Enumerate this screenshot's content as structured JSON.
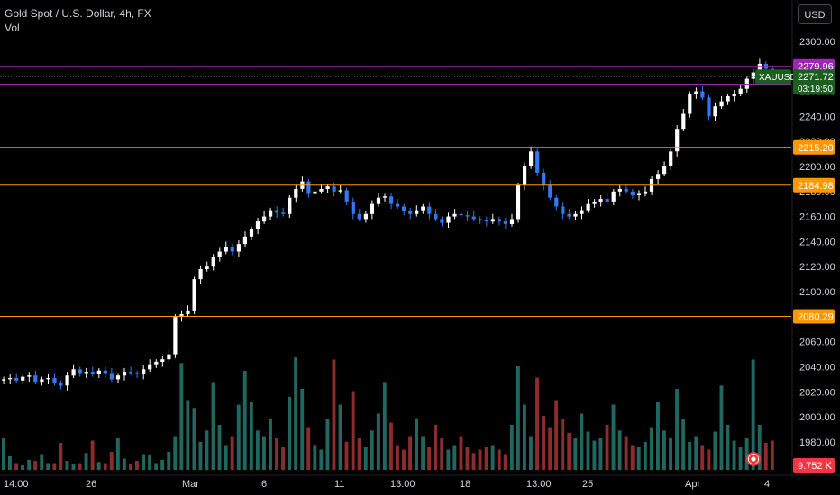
{
  "header": {
    "symbol_title": "Gold Spot / U.S. Dollar, 4h, FX",
    "indicator_label": "Vol",
    "currency_button": "USD"
  },
  "price_axis_labels": [
    "2300.00",
    "2260.00",
    "2240.00",
    "2220.00",
    "2200.00",
    "2180.00",
    "2160.00",
    "2140.00",
    "2120.00",
    "2100.00",
    "2080.00",
    "2060.00",
    "2040.00",
    "2020.00",
    "2000.00",
    "1980.00"
  ],
  "time_axis_labels": [
    "14:00",
    "26",
    "Mar",
    "6",
    "11",
    "13:00",
    "18",
    "13:00",
    "25",
    "Apr",
    "4"
  ],
  "colors": {
    "up": "#ffffff",
    "down": "#3179f5",
    "vol_up": "#22675f",
    "vol_down": "#8c2d2d",
    "orange": "#ff9800",
    "purple": "#9c27b0",
    "green_badge": "#1b5e20",
    "red_badge": "#f23645"
  },
  "chart_data": {
    "type": "candlestick",
    "title": "Gold Spot / U.S. Dollar, 4h, FX",
    "symbol": "XAUUSD",
    "interval": "4h",
    "ylim": [
      1962,
      2306
    ],
    "grid": false,
    "current_price": 2271.72,
    "countdown": "03:19:50",
    "volume_readout": "9.752 K",
    "horizontal_lines": [
      {
        "price": 2279.96,
        "color": "#9c27b0",
        "label": "2279.96"
      },
      {
        "price": 2265.76,
        "color": "#9c27b0",
        "label": "2265.76"
      },
      {
        "price": 2215.2,
        "color": "#ff9800",
        "label": "2215.20"
      },
      {
        "price": 2184.98,
        "color": "#ff9800",
        "label": "2184.98"
      },
      {
        "price": 2080.29,
        "color": "#ff9800",
        "label": "2080.29"
      }
    ],
    "price_path": [
      2030,
      2031,
      2029,
      2032,
      2033,
      2028,
      2030,
      2031,
      2027,
      2025,
      2033,
      2038,
      2035,
      2036,
      2034,
      2037,
      2035,
      2030,
      2033,
      2036,
      2035,
      2034,
      2038,
      2042,
      2044,
      2046,
      2050,
      2080,
      2082,
      2085,
      2110,
      2118,
      2120,
      2128,
      2132,
      2136,
      2132,
      2138,
      2144,
      2150,
      2156,
      2160,
      2165,
      2163,
      2162,
      2175,
      2182,
      2188,
      2178,
      2180,
      2182,
      2184,
      2180,
      2181,
      2172,
      2162,
      2158,
      2162,
      2170,
      2175,
      2176,
      2170,
      2168,
      2164,
      2162,
      2165,
      2168,
      2162,
      2158,
      2155,
      2160,
      2162,
      2161,
      2160,
      2158,
      2157,
      2156,
      2158,
      2156,
      2154,
      2158,
      2185,
      2200,
      2212,
      2195,
      2185,
      2175,
      2168,
      2162,
      2160,
      2162,
      2165,
      2170,
      2172,
      2174,
      2172,
      2180,
      2182,
      2180,
      2177,
      2178,
      2180,
      2190,
      2194,
      2200,
      2212,
      2230,
      2242,
      2258,
      2260,
      2255,
      2240,
      2248,
      2252,
      2256,
      2258,
      2262,
      2270,
      2275,
      2282,
      2278,
      2272,
      2268,
      2270
    ],
    "volume_path": [
      0.28,
      0.12,
      0.06,
      0.04,
      0.09,
      0.08,
      0.14,
      0.06,
      0.06,
      0.24,
      0.08,
      0.05,
      0.06,
      0.15,
      0.26,
      0.07,
      0.06,
      0.16,
      0.28,
      0.1,
      0.05,
      0.08,
      0.14,
      0.13,
      0.06,
      0.09,
      0.16,
      0.3,
      0.95,
      0.62,
      0.55,
      0.25,
      0.35,
      0.78,
      0.4,
      0.22,
      0.3,
      0.58,
      0.88,
      0.6,
      0.35,
      0.3,
      0.45,
      0.28,
      0.2,
      0.65,
      1.0,
      0.72,
      0.38,
      0.22,
      0.18,
      0.45,
      0.98,
      0.58,
      0.25,
      0.7,
      0.28,
      0.2,
      0.35,
      0.5,
      0.78,
      0.42,
      0.22,
      0.18,
      0.3,
      0.46,
      0.3,
      0.2,
      0.4,
      0.28,
      0.18,
      0.22,
      0.3,
      0.2,
      0.15,
      0.18,
      0.2,
      0.22,
      0.18,
      0.14,
      0.4,
      0.92,
      0.58,
      0.3,
      0.82,
      0.48,
      0.38,
      0.62,
      0.45,
      0.33,
      0.28,
      0.5,
      0.34,
      0.26,
      0.28,
      0.4,
      0.58,
      0.35,
      0.3,
      0.22,
      0.2,
      0.25,
      0.38,
      0.6,
      0.35,
      0.28,
      0.72,
      0.45,
      0.25,
      0.3,
      0.22,
      0.18,
      0.34,
      0.75,
      0.4,
      0.26,
      0.2,
      0.28,
      0.98,
      0.4,
      0.24,
      0.26
    ],
    "time_ticks": [
      "14:00",
      "26",
      "Mar",
      "6",
      "11",
      "13:00",
      "18",
      "13:00",
      "25",
      "Apr",
      "4"
    ]
  }
}
